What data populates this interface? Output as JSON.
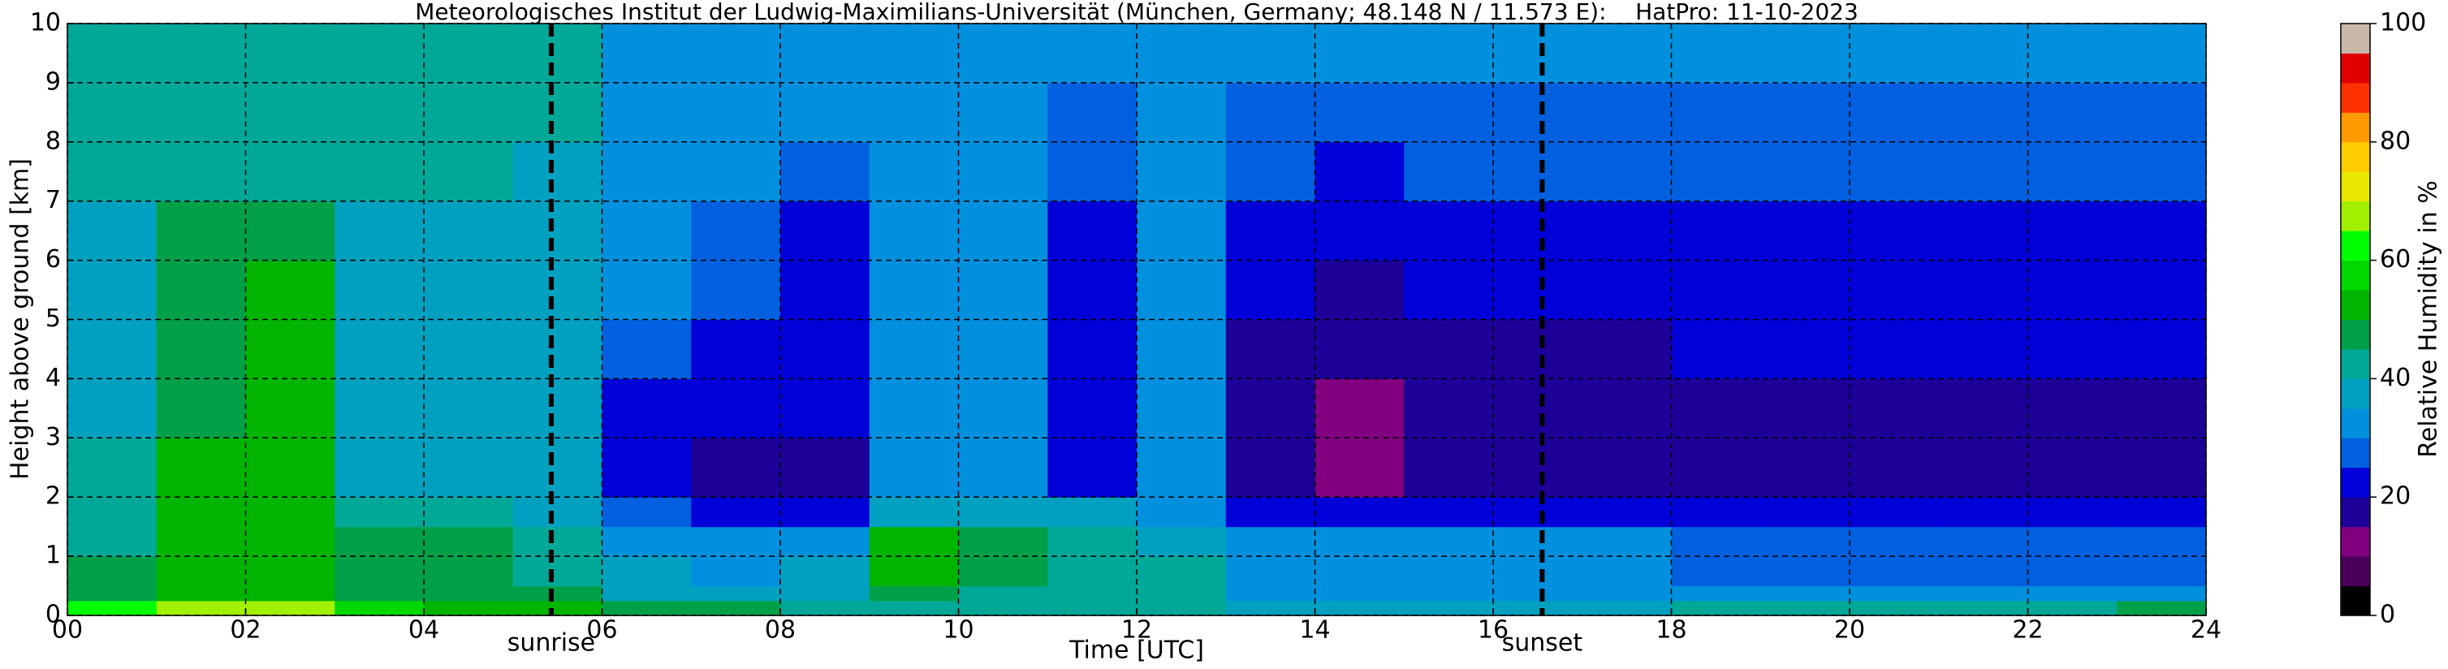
{
  "chart_data": {
    "type": "heatmap",
    "title": "Meteorologisches Institut der Ludwig-Maximilians-Universität (München, Germany; 48.148 N / 11.573 E):    HatPro: 11-10-2023",
    "x_label": "Time [UTC]",
    "y_label": "Height above ground [km]",
    "x": [
      0,
      1,
      2,
      3,
      4,
      5,
      6,
      7,
      8,
      9,
      10,
      11,
      12,
      13,
      14,
      15,
      16,
      17,
      18,
      19,
      20,
      21,
      22,
      23,
      24
    ],
    "y": [
      0,
      0.25,
      0.5,
      1,
      1.5,
      2,
      3,
      4,
      5,
      6,
      7,
      8,
      9,
      10
    ],
    "z": [
      [
        62,
        65,
        65,
        55,
        52,
        50,
        48,
        46,
        44,
        44,
        42,
        40,
        40,
        36,
        36,
        36,
        36,
        36,
        44,
        44,
        44,
        44,
        44,
        46
      ],
      [
        48,
        50,
        50,
        47,
        46,
        45,
        38,
        36,
        37,
        45,
        44,
        42,
        40,
        32,
        31,
        31,
        31,
        31,
        31,
        31,
        30,
        30,
        30,
        30
      ],
      [
        46,
        50,
        52,
        47,
        46,
        44,
        36,
        34,
        36,
        54,
        47,
        44,
        40,
        32,
        30,
        30,
        30,
        30,
        29,
        29,
        28,
        28,
        28,
        28
      ],
      [
        44,
        50,
        52,
        47,
        46,
        42,
        34,
        33,
        34,
        50,
        46,
        42,
        38,
        31,
        30,
        30,
        30,
        30,
        28,
        28,
        27,
        27,
        27,
        27
      ],
      [
        42,
        50,
        52,
        44,
        42,
        38,
        26,
        24,
        24,
        36,
        36,
        36,
        34,
        21,
        20,
        20,
        20,
        20,
        22,
        22,
        22,
        22,
        22,
        22
      ],
      [
        40,
        50,
        52,
        37,
        36,
        35,
        22,
        19,
        19,
        31,
        32,
        22,
        30,
        16,
        14,
        16,
        16,
        17,
        18,
        18,
        18,
        18,
        18,
        18
      ],
      [
        38,
        48,
        52,
        36,
        35,
        35,
        22,
        20,
        20,
        31,
        32,
        22,
        30,
        18,
        13,
        18,
        18,
        18,
        19,
        19,
        19,
        19,
        19,
        19
      ],
      [
        38,
        47,
        50,
        37,
        36,
        36,
        27,
        20,
        20,
        30,
        31,
        22,
        30,
        19,
        17,
        19,
        19,
        19,
        20,
        20,
        20,
        20,
        20,
        20
      ],
      [
        38,
        46,
        50,
        38,
        37,
        36,
        30,
        25,
        22,
        30,
        31,
        23,
        30,
        20,
        19,
        20,
        20,
        20,
        21,
        21,
        21,
        21,
        21,
        21
      ],
      [
        39,
        45,
        48,
        39,
        38,
        37,
        31,
        28,
        24,
        30,
        31,
        24,
        30,
        21,
        20,
        21,
        21,
        22,
        23,
        23,
        23,
        23,
        23,
        23
      ],
      [
        40,
        42,
        44,
        40,
        40,
        39,
        32,
        30,
        28,
        30,
        31,
        26,
        30,
        25,
        24,
        25,
        25,
        26,
        26,
        26,
        26,
        26,
        26,
        26
      ],
      [
        41,
        41,
        41,
        41,
        41,
        40,
        33,
        31,
        31,
        31,
        31,
        28,
        31,
        28,
        27,
        28,
        28,
        28,
        28,
        28,
        28,
        28,
        28,
        28
      ],
      [
        41,
        41,
        41,
        41,
        41,
        40,
        34,
        32,
        32,
        32,
        32,
        30,
        31,
        30,
        30,
        30,
        30,
        30,
        30,
        30,
        30,
        30,
        30,
        30
      ]
    ],
    "xlim": [
      0,
      24
    ],
    "xticks": [
      {
        "value": 0,
        "label": "00"
      },
      {
        "value": 2,
        "label": "02"
      },
      {
        "value": 4,
        "label": "04"
      },
      {
        "value": 6,
        "label": "06"
      },
      {
        "value": 8,
        "label": "08"
      },
      10,
      12,
      14,
      16,
      18,
      20,
      22,
      24
    ],
    "ylim": [
      0,
      10
    ],
    "yticks": [
      0,
      1,
      2,
      3,
      4,
      5,
      6,
      7,
      8,
      9,
      10
    ],
    "grid": true,
    "annotations": [
      {
        "x": 5.43,
        "label": "sunrise"
      },
      {
        "x": 16.55,
        "label": "sunset"
      }
    ],
    "colorbar": {
      "label": "Relative Humidity in %",
      "ticks": [
        0,
        20,
        40,
        60,
        80,
        100
      ],
      "levels": [
        0,
        5,
        10,
        15,
        20,
        25,
        30,
        35,
        40,
        45,
        50,
        55,
        60,
        65,
        70,
        75,
        80,
        85,
        90,
        95,
        100
      ],
      "colors": [
        "#000000",
        "#4a0058",
        "#800080",
        "#1c0098",
        "#0000d8",
        "#0060e0",
        "#0090dd",
        "#00a0c0",
        "#00a898",
        "#00a048",
        "#00b400",
        "#00d800",
        "#00ff00",
        "#a0f000",
        "#e8e800",
        "#ffcc00",
        "#ff9900",
        "#ff3000",
        "#e00000",
        "#c8b8a8"
      ]
    }
  }
}
